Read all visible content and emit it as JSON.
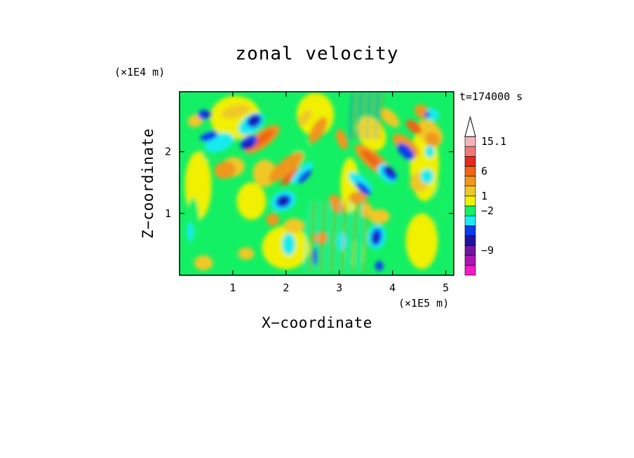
{
  "chart_data": {
    "type": "heatmap",
    "title": "zonal velocity",
    "xlabel": "X−coordinate",
    "ylabel": "Z−coordinate",
    "x_unit": "(×1E5 m)",
    "y_unit": "(×1E4 m)",
    "time_label": "t=174000 s",
    "xlim": [
      0,
      5.15
    ],
    "ylim": [
      0,
      2.97
    ],
    "x_ticks": [
      {
        "value": 1,
        "label": "1"
      },
      {
        "value": 2,
        "label": "2"
      },
      {
        "value": 3,
        "label": "3"
      },
      {
        "value": 4,
        "label": "4"
      },
      {
        "value": 5,
        "label": "5"
      }
    ],
    "y_ticks": [
      {
        "value": 1,
        "label": "1"
      },
      {
        "value": 2,
        "label": "2"
      }
    ],
    "grid": false,
    "legend": "right colorbar",
    "colorbar": {
      "levels": [
        {
          "color": "#f01ac8"
        },
        {
          "color": "#aa14b4"
        },
        {
          "color": "#7514a0"
        },
        {
          "color": "#1e14a0"
        },
        {
          "color": "#0a3cf0"
        },
        {
          "color": "#19ebf0"
        },
        {
          "color": "#14f064"
        },
        {
          "color": "#f0f000"
        },
        {
          "color": "#f0c828"
        },
        {
          "color": "#f0961e"
        },
        {
          "color": "#f06414"
        },
        {
          "color": "#e6281e"
        },
        {
          "color": "#f07878"
        },
        {
          "color": "#f5b4b4"
        }
      ],
      "labels": [
        {
          "text": "15.1",
          "level": 13.5
        },
        {
          "text": "6",
          "level": 10.5
        },
        {
          "text": "1",
          "level": 8.0
        },
        {
          "text": "−2",
          "level": 6.5
        },
        {
          "text": "−9",
          "level": 2.5
        }
      ],
      "extend_top_color": "#ffffff"
    }
  }
}
